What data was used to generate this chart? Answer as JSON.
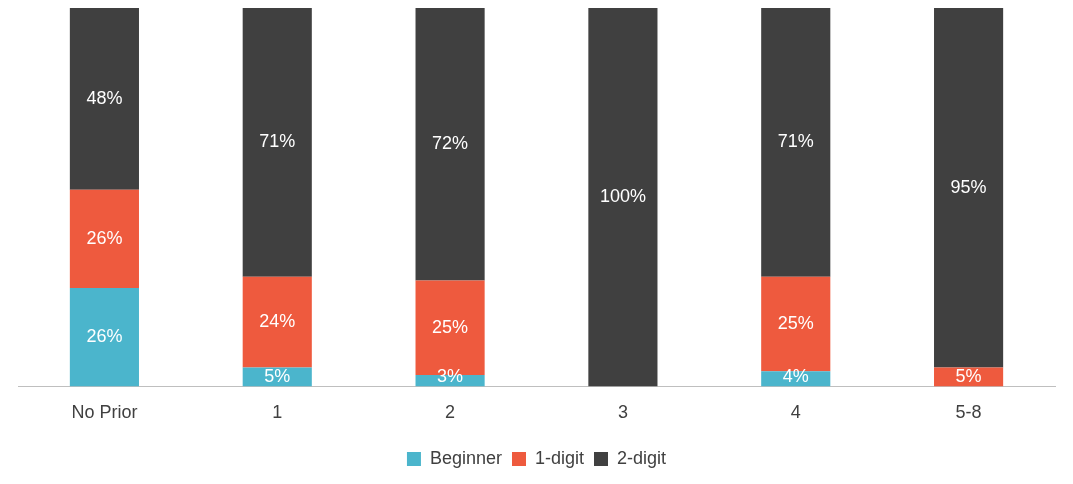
{
  "chart_data": {
    "type": "bar",
    "stacked": true,
    "categories": [
      "No Prior",
      "1",
      "2",
      "3",
      "4",
      "5-8"
    ],
    "series": [
      {
        "name": "Beginner",
        "color": "#4bb5cc",
        "values": [
          26,
          5,
          3,
          0,
          4,
          0
        ],
        "value_labels": [
          "26%",
          "5%",
          "3%",
          null,
          "4%",
          null
        ]
      },
      {
        "name": "1-digit",
        "color": "#ee5a3e",
        "values": [
          26,
          24,
          25,
          0,
          25,
          5
        ],
        "value_labels": [
          "26%",
          "24%",
          "25%",
          null,
          "25%",
          "5%"
        ]
      },
      {
        "name": "2-digit",
        "color": "#404040",
        "values": [
          48,
          71,
          72,
          100,
          71,
          95
        ],
        "value_labels": [
          "48%",
          "71%",
          "72%",
          "100%",
          "71%",
          "95%"
        ]
      }
    ],
    "ylim": [
      0,
      100
    ],
    "tick_labels": "x",
    "grid": false,
    "legend": "bottom"
  }
}
